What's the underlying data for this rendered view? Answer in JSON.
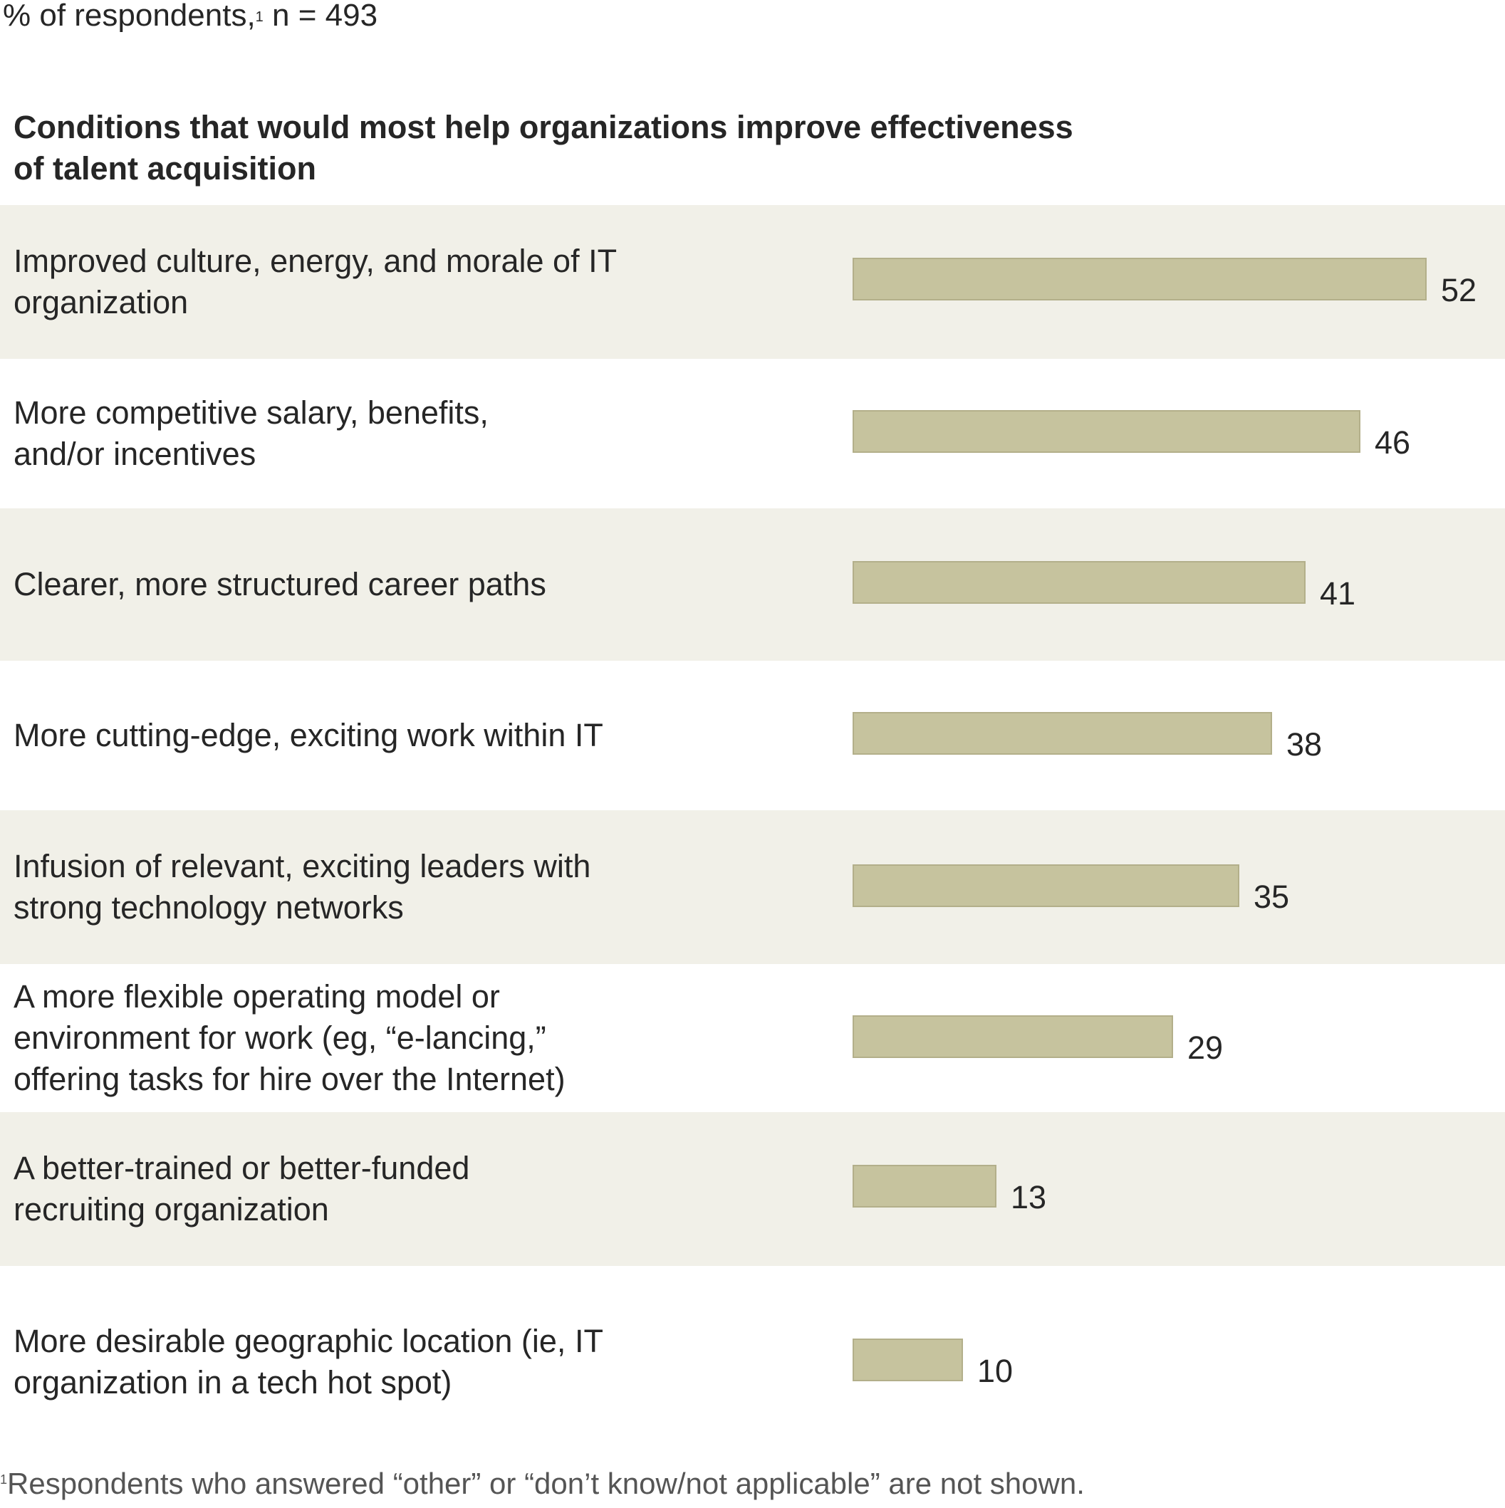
{
  "subtitle": {
    "prefix": "% of respondents,",
    "footnote_mark": "1",
    "suffix": " n = 493"
  },
  "footnote": {
    "mark": "1",
    "text": "Respondents who answered “other” or “don’t know/not applicable” are not shown."
  },
  "chart_data": {
    "type": "bar",
    "orientation": "horizontal",
    "title": "Conditions that would most help organizations improve effectiveness of talent acquisition",
    "unit": "% of respondents",
    "n": 493,
    "categories": [
      "Improved culture, energy, and morale of IT organization",
      "More competitive salary, benefits, and/or incentives",
      "Clearer, more structured career paths",
      "More cutting-edge, exciting work within IT",
      "Infusion of relevant, exciting leaders with strong technology networks",
      "A more flexible operating model or environment for work (eg, “e-lancing,” offering tasks for hire over the Internet)",
      "A better-trained or better-funded recruiting organization",
      "More desirable geographic location (ie, IT organization in a tech hot spot)"
    ],
    "values": [
      52,
      46,
      41,
      38,
      35,
      29,
      13,
      10
    ],
    "labels": [
      "52",
      "46",
      "41",
      "38",
      "35",
      "29",
      "13",
      "10"
    ],
    "xlim": [
      0,
      52
    ],
    "bar_color": "#c6c39e",
    "row_shading_color": "#f1f0e8",
    "grid": false,
    "legend": "none"
  }
}
